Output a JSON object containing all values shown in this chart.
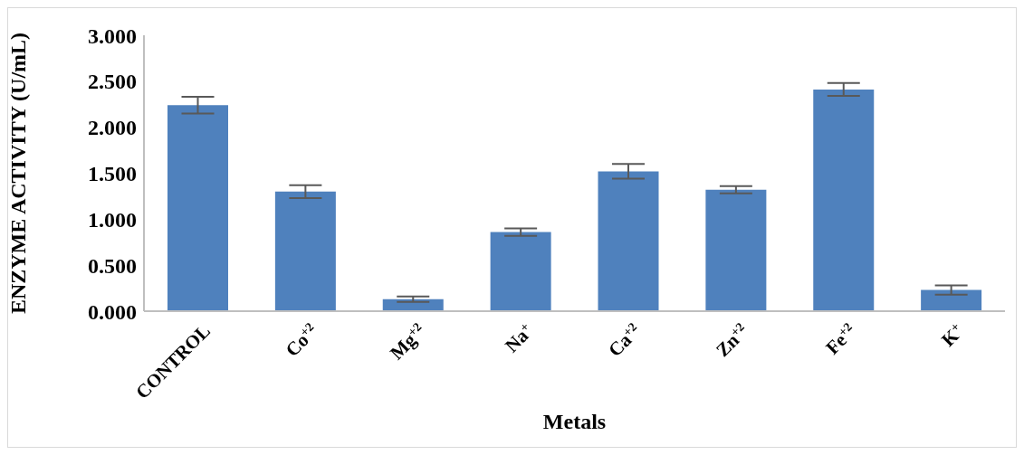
{
  "chart_data": {
    "type": "bar",
    "xlabel": "Metals",
    "ylabel": "ENZYME ACTIVITY (U/mL)",
    "categories": [
      "CONTROL",
      "Co$^{+2}$",
      "Mg$^{+2}$",
      "Na$^{+}$",
      "Ca$^{+2}$",
      "Zn$^{+2}$",
      "Fe$^{+2}$",
      "K$^{+}$"
    ],
    "values": [
      2.24,
      1.3,
      0.13,
      0.86,
      1.52,
      1.32,
      2.41,
      0.23
    ],
    "errors": [
      0.09,
      0.07,
      0.03,
      0.04,
      0.08,
      0.04,
      0.07,
      0.05
    ],
    "color": "#4f81bd",
    "ylim": [
      0,
      3
    ],
    "yticks": [
      {
        "value": 0,
        "label": "0.000"
      },
      {
        "value": 0.5,
        "label": "0.500"
      },
      {
        "value": 1,
        "label": "1.000"
      },
      {
        "value": 1.5,
        "label": "1.500"
      },
      {
        "value": 2,
        "label": "2.000"
      },
      {
        "value": 2.5,
        "label": "2.500"
      },
      {
        "value": 3,
        "label": "3.000"
      }
    ],
    "grid": false,
    "legend": false
  }
}
